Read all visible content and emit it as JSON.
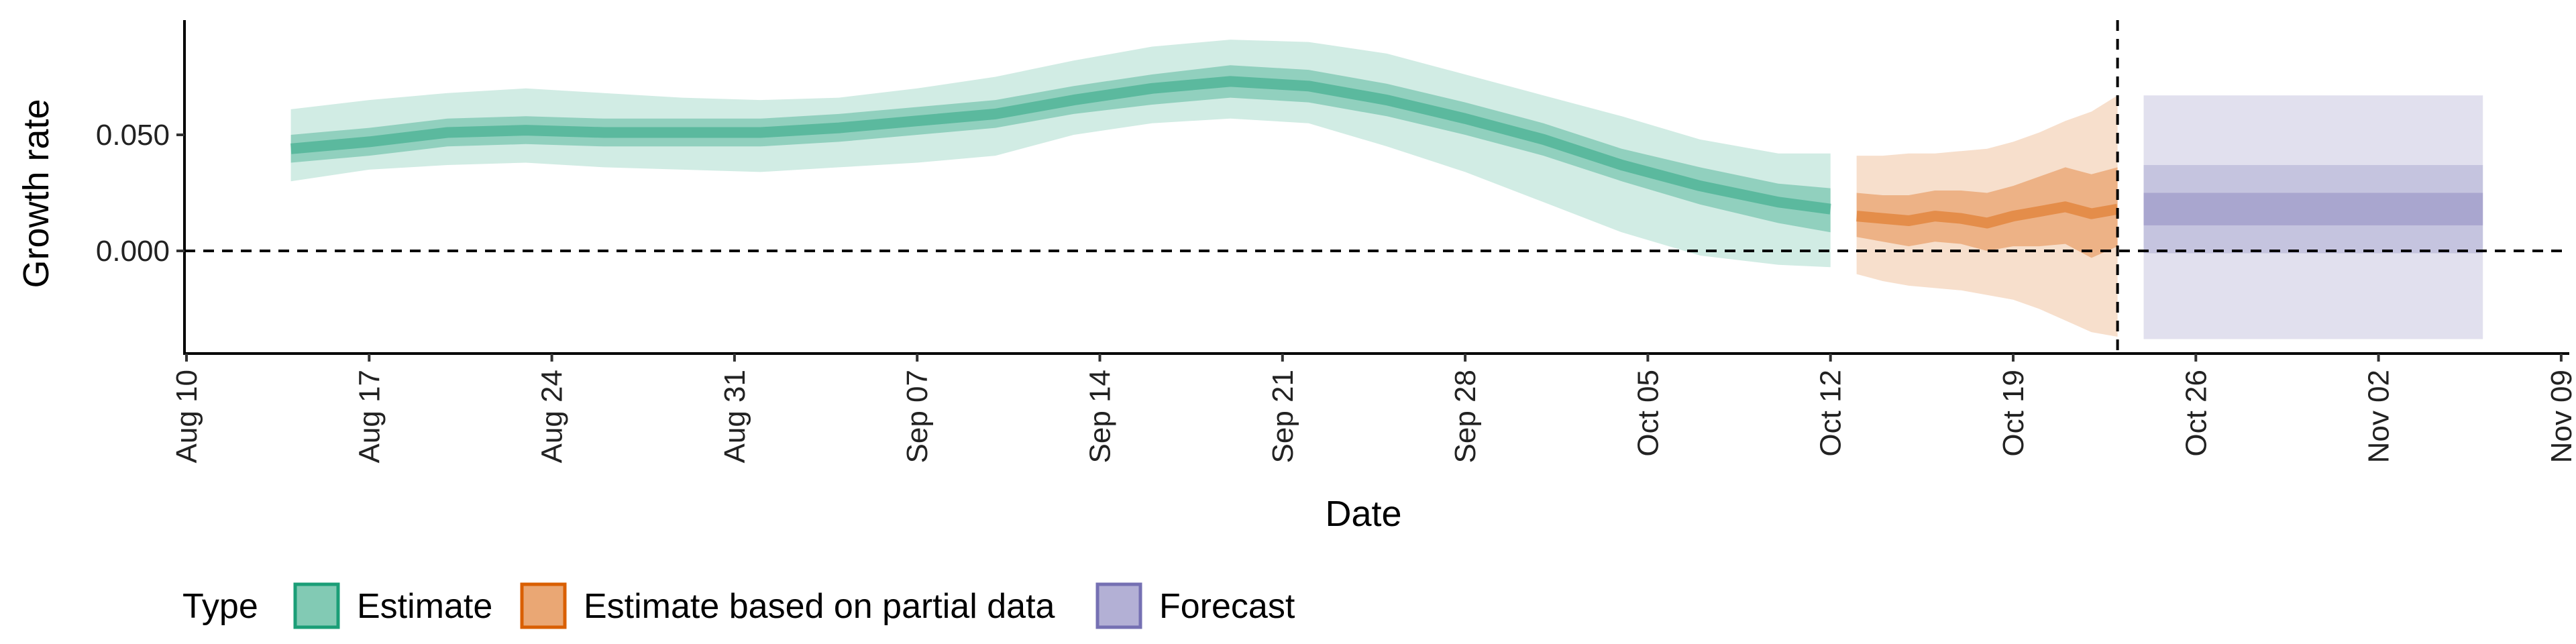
{
  "chart_data": {
    "type": "area",
    "title": "",
    "xlabel": "Date",
    "ylabel": "Growth rate",
    "x_axis": {
      "ticks": [
        "2020-08-10",
        "2020-08-17",
        "2020-08-24",
        "2020-08-31",
        "2020-09-07",
        "2020-09-14",
        "2020-09-21",
        "2020-09-28",
        "2020-10-05",
        "2020-10-12",
        "2020-10-19",
        "2020-10-26",
        "2020-11-02",
        "2020-11-09"
      ],
      "tick_labels": [
        "Aug 10",
        "Aug 17",
        "Aug 24",
        "Aug 31",
        "Sep 07",
        "Sep 14",
        "Sep 21",
        "Sep 28",
        "Oct 05",
        "Oct 12",
        "Oct 19",
        "Oct 26",
        "Nov 02",
        "Nov 09"
      ],
      "range": [
        "2020-08-10",
        "2020-11-10"
      ]
    },
    "y_axis": {
      "ticks": [
        0.0,
        0.05
      ],
      "tick_labels": [
        "0.000",
        "0.050"
      ],
      "range": [
        -0.044,
        0.1
      ]
    },
    "reference_lines": {
      "horizontal_y": 0.0,
      "vertical_date": "2020-10-23"
    },
    "grid": false,
    "legend": {
      "title": "Type",
      "position": "bottom",
      "entries": [
        "Estimate",
        "Estimate based on partial data",
        "Forecast"
      ]
    },
    "colors": {
      "Estimate": "#1b9e77",
      "Estimate based on partial data": "#d95f02",
      "Forecast": "#7570b3"
    },
    "series": [
      {
        "name": "Estimate",
        "dates": [
          "2020-08-14",
          "2020-08-17",
          "2020-08-20",
          "2020-08-23",
          "2020-08-26",
          "2020-08-29",
          "2020-09-01",
          "2020-09-04",
          "2020-09-07",
          "2020-09-10",
          "2020-09-13",
          "2020-09-16",
          "2020-09-19",
          "2020-09-22",
          "2020-09-25",
          "2020-09-28",
          "2020-10-01",
          "2020-10-04",
          "2020-10-07",
          "2020-10-10",
          "2020-10-12"
        ],
        "median": [
          0.044,
          0.047,
          0.051,
          0.052,
          0.051,
          0.051,
          0.051,
          0.053,
          0.056,
          0.059,
          0.065,
          0.07,
          0.073,
          0.071,
          0.065,
          0.057,
          0.048,
          0.037,
          0.028,
          0.021,
          0.018
        ],
        "inner_lower": [
          0.038,
          0.041,
          0.045,
          0.046,
          0.045,
          0.045,
          0.045,
          0.047,
          0.05,
          0.053,
          0.059,
          0.063,
          0.066,
          0.064,
          0.058,
          0.05,
          0.041,
          0.03,
          0.02,
          0.012,
          0.008
        ],
        "inner_upper": [
          0.05,
          0.053,
          0.057,
          0.058,
          0.057,
          0.057,
          0.057,
          0.059,
          0.062,
          0.065,
          0.071,
          0.076,
          0.08,
          0.078,
          0.072,
          0.064,
          0.055,
          0.044,
          0.036,
          0.029,
          0.027
        ],
        "outer_lower": [
          0.03,
          0.035,
          0.037,
          0.038,
          0.036,
          0.035,
          0.034,
          0.036,
          0.038,
          0.041,
          0.05,
          0.055,
          0.057,
          0.055,
          0.045,
          0.034,
          0.021,
          0.008,
          -0.002,
          -0.006,
          -0.007
        ],
        "outer_upper": [
          0.061,
          0.065,
          0.068,
          0.07,
          0.068,
          0.066,
          0.065,
          0.066,
          0.07,
          0.075,
          0.082,
          0.088,
          0.091,
          0.09,
          0.085,
          0.076,
          0.067,
          0.058,
          0.048,
          0.042,
          0.042
        ]
      },
      {
        "name": "Estimate based on partial data",
        "dates": [
          "2020-10-13",
          "2020-10-14",
          "2020-10-15",
          "2020-10-16",
          "2020-10-17",
          "2020-10-18",
          "2020-10-19",
          "2020-10-20",
          "2020-10-21",
          "2020-10-22",
          "2020-10-23"
        ],
        "median": [
          0.015,
          0.014,
          0.013,
          0.015,
          0.014,
          0.012,
          0.015,
          0.017,
          0.019,
          0.016,
          0.018
        ],
        "inner_lower": [
          0.006,
          0.004,
          0.002,
          0.004,
          0.003,
          0.0,
          0.002,
          0.002,
          0.003,
          -0.003,
          0.002
        ],
        "inner_upper": [
          0.025,
          0.024,
          0.024,
          0.026,
          0.026,
          0.025,
          0.028,
          0.032,
          0.036,
          0.033,
          0.036
        ],
        "outer_lower": [
          -0.01,
          -0.013,
          -0.015,
          -0.016,
          -0.017,
          -0.019,
          -0.021,
          -0.025,
          -0.03,
          -0.035,
          -0.037
        ],
        "outer_upper": [
          0.041,
          0.041,
          0.042,
          0.042,
          0.043,
          0.044,
          0.047,
          0.051,
          0.056,
          0.06,
          0.067
        ]
      },
      {
        "name": "Forecast",
        "dates": [
          "2020-10-24",
          "2020-11-06"
        ],
        "median": [
          0.018,
          0.018
        ],
        "inner_lower": [
          0.011,
          0.011
        ],
        "inner_upper": [
          0.025,
          0.025
        ],
        "mid_lower": [
          -0.001,
          -0.001
        ],
        "mid_upper": [
          0.037,
          0.037
        ],
        "outer_lower": [
          -0.038,
          -0.038
        ],
        "outer_upper": [
          0.067,
          0.067
        ]
      }
    ]
  }
}
